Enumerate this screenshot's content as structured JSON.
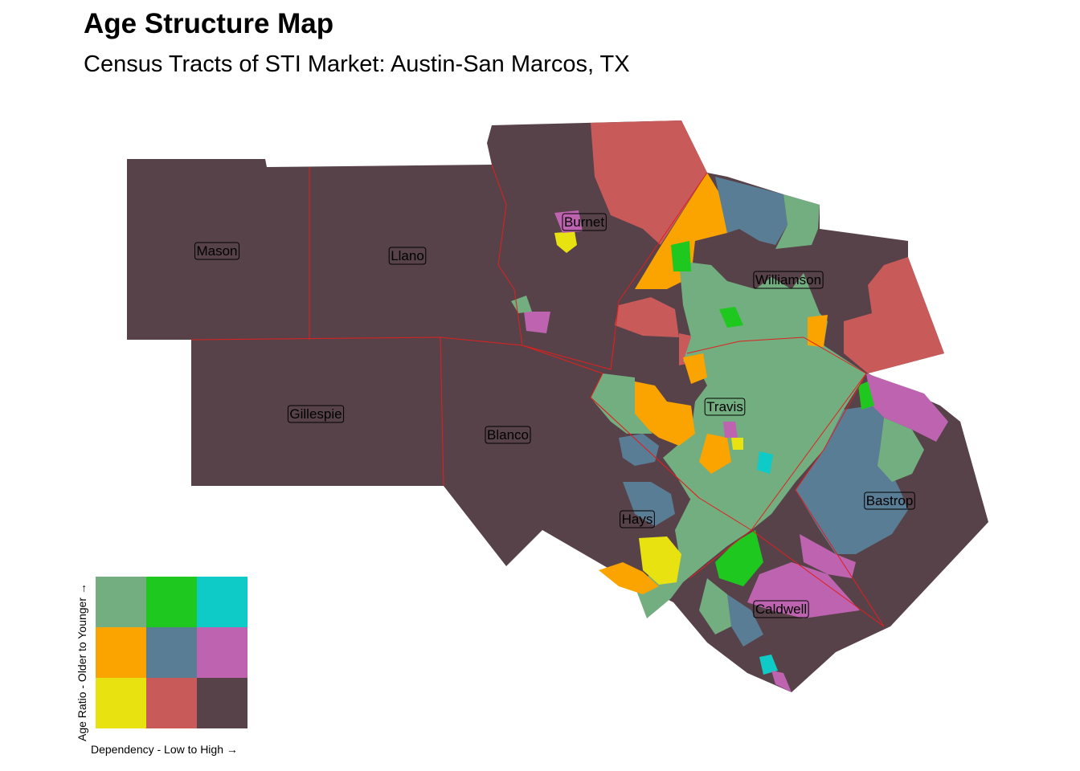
{
  "title": "Age Structure Map",
  "subtitle": "Census Tracts of STI Market: Austin-San Marcos, TX",
  "counties": [
    "Mason",
    "Llano",
    "Burnet",
    "Williamson",
    "Gillespie",
    "Blanco",
    "Travis",
    "Hays",
    "Bastrop",
    "Caldwell"
  ],
  "legend": {
    "y_label": "Age Ratio - Older to Younger →",
    "x_label": "Dependency - Low to High →",
    "rows_top_to_bottom": [
      [
        "#73ae80",
        "#1ec81e",
        "#0fcbc8"
      ],
      [
        "#fba400",
        "#5a7d96",
        "#bd63af"
      ],
      [
        "#e9e211",
        "#c85a5a",
        "#574249"
      ]
    ]
  },
  "colors": {
    "dark": "#574249",
    "red": "#c85a5a",
    "yellow": "#e9e211",
    "orange": "#fba400",
    "blue": "#5a7d96",
    "pink": "#bd63af",
    "green": "#73ae80",
    "brightgreen": "#1ec81e",
    "cyan": "#0fcbc8",
    "border": "#e0201e"
  }
}
